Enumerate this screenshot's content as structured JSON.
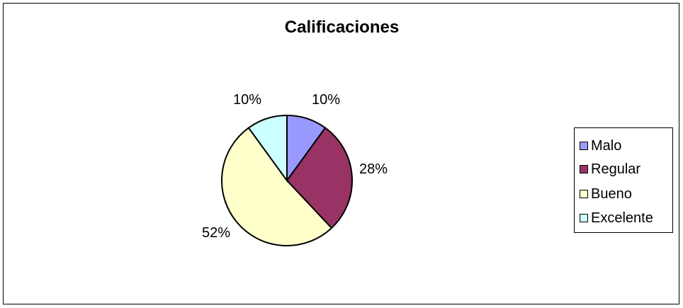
{
  "chart_data": {
    "type": "pie",
    "title": "Calificaciones",
    "categories": [
      "Malo",
      "Regular",
      "Bueno",
      "Excelente"
    ],
    "values": [
      10,
      28,
      52,
      10
    ],
    "value_labels": [
      "10%",
      "28%",
      "52%",
      "10%"
    ],
    "colors": [
      "#9999ff",
      "#993366",
      "#ffffcc",
      "#ccffff"
    ],
    "legend_position": "right",
    "start_angle_deg": 0,
    "direction": "clockwise"
  },
  "legend": {
    "items": [
      {
        "label": "Malo"
      },
      {
        "label": "Regular"
      },
      {
        "label": "Bueno"
      },
      {
        "label": "Excelente"
      }
    ]
  }
}
